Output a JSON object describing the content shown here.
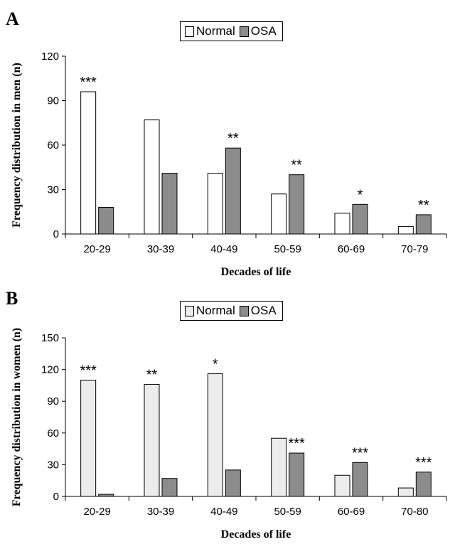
{
  "colors": {
    "normal_men": "#ffffff",
    "normal_women": "#ececec",
    "osa": "#8c8c8c",
    "stroke": "#000000"
  },
  "chart_data": [
    {
      "type": "bar",
      "panel_label": "A",
      "ylabel": "Frequency distribution in men (n)",
      "xlabel": "Decades of life",
      "ylim": [
        0,
        120
      ],
      "yticks": [
        "0",
        "30",
        "60",
        "90",
        "120"
      ],
      "categories": [
        "20-29",
        "30-39",
        "40-49",
        "50-59",
        "60-69",
        "70-79"
      ],
      "legend": [
        "Normal",
        "OSA"
      ],
      "legend_position": "top-center",
      "series": [
        {
          "name": "Normal",
          "values": [
            96,
            77,
            41,
            27,
            14,
            5
          ]
        },
        {
          "name": "OSA",
          "values": [
            18,
            41,
            58,
            40,
            20,
            13
          ]
        }
      ],
      "annotations": [
        "***",
        "",
        "**",
        "**",
        "*",
        "**"
      ],
      "annotation_on": [
        "Normal",
        "Normal",
        "OSA",
        "OSA",
        "OSA",
        "OSA"
      ]
    },
    {
      "type": "bar",
      "panel_label": "B",
      "ylabel": "Frequency distribution in women (n)",
      "xlabel": "Decades of life",
      "ylim": [
        0,
        150
      ],
      "yticks": [
        "0",
        "30",
        "60",
        "90",
        "120",
        "150"
      ],
      "categories": [
        "20-29",
        "30-39",
        "40-49",
        "50-59",
        "60-69",
        "70-80"
      ],
      "legend": [
        "Normal",
        "OSA"
      ],
      "legend_position": "top-center",
      "series": [
        {
          "name": "Normal",
          "values": [
            110,
            106,
            116,
            55,
            20,
            8
          ]
        },
        {
          "name": "OSA",
          "values": [
            2,
            17,
            25,
            41,
            32,
            23
          ]
        }
      ],
      "annotations": [
        "***",
        "**",
        "*",
        "***",
        "***",
        "***"
      ],
      "annotation_on": [
        "Normal",
        "Normal",
        "Normal",
        "OSA",
        "OSA",
        "OSA"
      ]
    }
  ]
}
